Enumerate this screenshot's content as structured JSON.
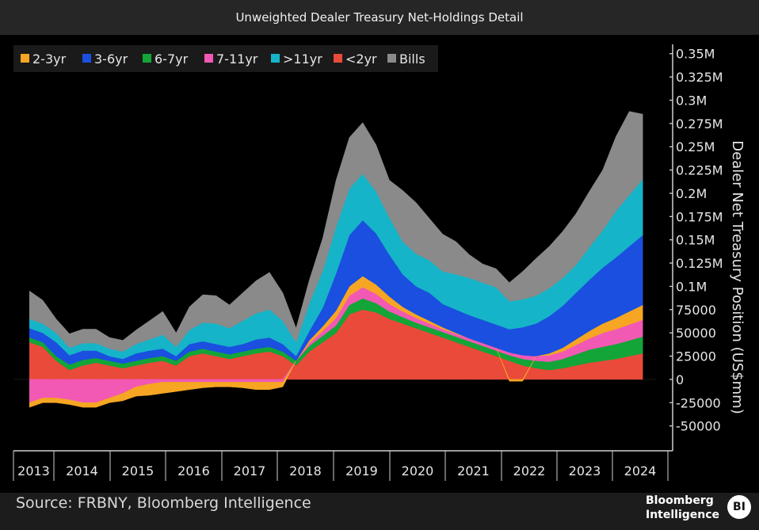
{
  "header": {
    "title": "Unweighted Dealer Treasury Net-Holdings Detail"
  },
  "footer": {
    "source": "Source: FRBNY, Bloomberg Intelligence",
    "brand_line1": "Bloomberg",
    "brand_line2": "Intelligence",
    "brand_badge": "BI"
  },
  "colors": {
    "background": "#000000",
    "2-3yr": "#f6a623",
    "3-6yr": "#1a4fe0",
    "6-7yr": "#13a538",
    "7-11yr": "#f259b4",
    "11yr": "#16b4c8",
    "2yr": "#ea4a3a",
    "bills": "#8a8a8a"
  },
  "chart_data": {
    "type": "area",
    "title": "",
    "xlabel": "",
    "ylabel": "Dealer Net Treasury Position (US$mm)",
    "x_ticks": [
      "2013",
      "2014",
      "2015",
      "2016",
      "2017",
      "2018",
      "2019",
      "2020",
      "2021",
      "2022",
      "2023",
      "2024"
    ],
    "y_ticks": [
      "0.35M",
      "0.325M",
      "0.3M",
      "0.275M",
      "0.25M",
      "0.225M",
      "0.2M",
      "0.175M",
      "0.15M",
      "0.125M",
      "0.1M",
      "75000",
      "50000",
      "25000",
      "0",
      "-25000",
      "-50000"
    ],
    "ylim": [
      -75000,
      360000
    ],
    "legend": {
      "position": "top-left"
    },
    "stack_order": [
      "<2yr",
      "6-7yr",
      "7-11yr",
      "2-3yr",
      "3-6yr",
      ">11yr",
      "Bills"
    ],
    "x": [
      2013.0,
      2013.25,
      2013.5,
      2013.75,
      2014.0,
      2014.25,
      2014.5,
      2014.75,
      2015.0,
      2015.25,
      2015.5,
      2015.75,
      2016.0,
      2016.25,
      2016.5,
      2016.75,
      2017.0,
      2017.25,
      2017.5,
      2017.75,
      2018.0,
      2018.25,
      2018.5,
      2018.75,
      2019.0,
      2019.25,
      2019.5,
      2019.75,
      2020.0,
      2020.25,
      2020.5,
      2020.75,
      2021.0,
      2021.25,
      2021.5,
      2021.75,
      2022.0,
      2022.25,
      2022.5,
      2022.75,
      2023.0,
      2023.25,
      2023.5,
      2023.75,
      2024.0,
      2024.25,
      2024.5
    ],
    "series": [
      {
        "name": "<2yr",
        "color_key": "2yr",
        "values": [
          40000,
          35000,
          20000,
          10000,
          15000,
          18000,
          15000,
          12000,
          15000,
          18000,
          20000,
          15000,
          25000,
          28000,
          25000,
          22000,
          25000,
          28000,
          30000,
          25000,
          15000,
          30000,
          40000,
          50000,
          70000,
          75000,
          72000,
          65000,
          60000,
          55000,
          50000,
          45000,
          40000,
          35000,
          30000,
          25000,
          20000,
          15000,
          12000,
          10000,
          12000,
          15000,
          18000,
          20000,
          22000,
          25000,
          28000
        ]
      },
      {
        "name": "6-7yr",
        "color_key": "6-7yr",
        "values": [
          5000,
          5000,
          5000,
          6000,
          6000,
          5000,
          5000,
          5000,
          5000,
          5000,
          5000,
          5000,
          5000,
          5000,
          5000,
          5000,
          5000,
          5000,
          5000,
          5000,
          5000,
          6000,
          7000,
          8000,
          10000,
          12000,
          10000,
          8000,
          7000,
          6000,
          6000,
          6000,
          6000,
          6000,
          6000,
          6000,
          6000,
          7000,
          8000,
          9000,
          10000,
          12000,
          14000,
          15000,
          16000,
          17000,
          18000
        ]
      },
      {
        "name": "7-11yr",
        "color_key": "7-11yr",
        "values": [
          -25000,
          -20000,
          -20000,
          -22000,
          -25000,
          -25000,
          -20000,
          -15000,
          -8000,
          -5000,
          -3000,
          -3000,
          -3000,
          -3000,
          -3000,
          -3000,
          -3000,
          -3000,
          -3000,
          -3000,
          0,
          3000,
          5000,
          8000,
          10000,
          12000,
          10000,
          8000,
          6000,
          5000,
          4000,
          3000,
          3000,
          3000,
          3000,
          3000,
          3000,
          4000,
          5000,
          7000,
          8000,
          10000,
          12000,
          15000,
          16000,
          17000,
          18000
        ]
      },
      {
        "name": "2-3yr",
        "color_key": "2-3yr",
        "values": [
          -5000,
          -5000,
          -5000,
          -5000,
          -5000,
          -5000,
          -5000,
          -8000,
          -10000,
          -12000,
          -12000,
          -10000,
          -8000,
          -6000,
          -5000,
          -5000,
          -6000,
          -8000,
          -8000,
          -5000,
          0,
          3000,
          5000,
          8000,
          10000,
          12000,
          10000,
          8000,
          5000,
          4000,
          3000,
          2000,
          1000,
          0,
          0,
          0,
          -2000,
          -2000,
          0,
          2000,
          4000,
          6000,
          8000,
          10000,
          12000,
          14000,
          16000
        ]
      },
      {
        "name": "3-6yr",
        "color_key": "3-6yr",
        "values": [
          10000,
          10000,
          15000,
          10000,
          10000,
          8000,
          5000,
          5000,
          8000,
          8000,
          8000,
          5000,
          8000,
          8000,
          8000,
          8000,
          8000,
          10000,
          10000,
          8000,
          5000,
          10000,
          20000,
          40000,
          55000,
          60000,
          55000,
          45000,
          35000,
          30000,
          30000,
          25000,
          25000,
          25000,
          25000,
          25000,
          25000,
          30000,
          35000,
          40000,
          45000,
          50000,
          55000,
          60000,
          65000,
          70000,
          75000
        ]
      },
      {
        "name": ">11yr",
        "color_key": "11yr",
        "values": [
          10000,
          10000,
          10000,
          8000,
          8000,
          8000,
          8000,
          8000,
          10000,
          12000,
          15000,
          10000,
          15000,
          20000,
          22000,
          20000,
          25000,
          28000,
          30000,
          25000,
          15000,
          30000,
          40000,
          50000,
          50000,
          50000,
          45000,
          40000,
          35000,
          35000,
          35000,
          35000,
          38000,
          40000,
          40000,
          40000,
          30000,
          30000,
          30000,
          30000,
          30000,
          30000,
          35000,
          40000,
          50000,
          55000,
          60000
        ]
      },
      {
        "name": "Bills",
        "color_key": "bills",
        "values": [
          30000,
          25000,
          15000,
          15000,
          15000,
          15000,
          12000,
          12000,
          15000,
          20000,
          25000,
          15000,
          25000,
          30000,
          30000,
          25000,
          30000,
          35000,
          40000,
          30000,
          15000,
          25000,
          35000,
          50000,
          55000,
          55000,
          50000,
          40000,
          55000,
          55000,
          45000,
          40000,
          35000,
          25000,
          20000,
          20000,
          20000,
          30000,
          40000,
          45000,
          50000,
          55000,
          60000,
          65000,
          80000,
          90000,
          70000
        ]
      }
    ]
  }
}
